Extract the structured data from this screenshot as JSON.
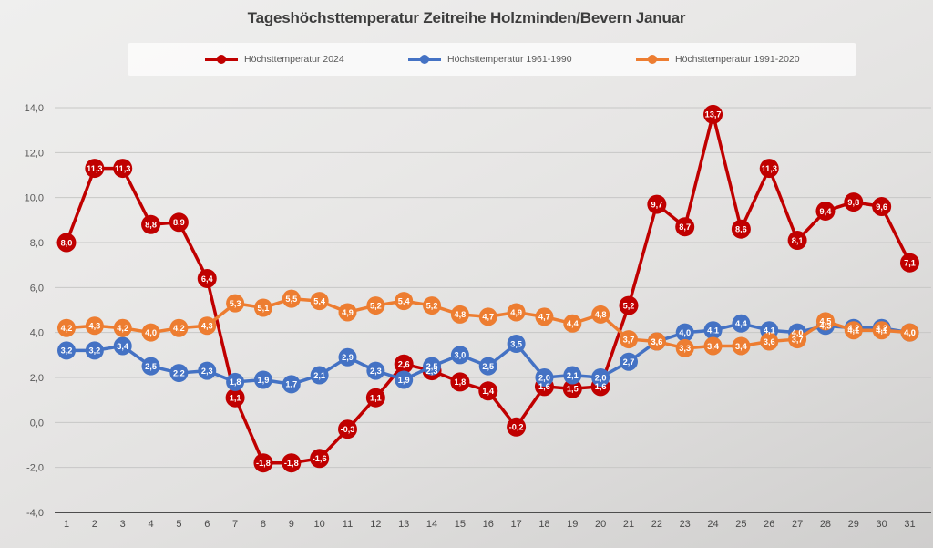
{
  "title": "Tageshöchsttemperatur Zeitreihe Holzminden/Bevern Januar",
  "legend": {
    "items": [
      {
        "label": "Höchsttemperatur 2024",
        "color": "#c00000"
      },
      {
        "label": "Höchsttemperatur 1961-1990",
        "color": "#4472c4"
      },
      {
        "label": "Höchsttemperatur 1991-2020",
        "color": "#ed7d31"
      }
    ]
  },
  "chart_data": {
    "type": "line",
    "title": "Tageshöchsttemperatur Zeitreihe Holzminden/Bevern Januar",
    "xlabel": "",
    "ylabel": "",
    "x": [
      1,
      2,
      3,
      4,
      5,
      6,
      7,
      8,
      9,
      10,
      11,
      12,
      13,
      14,
      15,
      16,
      17,
      18,
      19,
      20,
      21,
      22,
      23,
      24,
      25,
      26,
      27,
      28,
      29,
      30,
      31
    ],
    "xtick_labels": [
      "1",
      "2",
      "3",
      "4",
      "5",
      "6",
      "7",
      "8",
      "9",
      "10",
      "11",
      "12",
      "13",
      "14",
      "15",
      "16",
      "17",
      "18",
      "19",
      "20",
      "21",
      "22",
      "23",
      "24",
      "25",
      "26",
      "27",
      "28",
      "29",
      "30",
      "31"
    ],
    "ylim": [
      -4.0,
      14.0
    ],
    "ytick_step": 2.0,
    "ytick_labels": [
      "14,0",
      "12,0",
      "10,0",
      "8,0",
      "6,0",
      "4,0",
      "2,0",
      "0,0",
      "-2,0",
      "-4,0"
    ],
    "grid": true,
    "legend_position": "top",
    "decimal_separator": ",",
    "series": [
      {
        "name": "Höchsttemperatur 2024",
        "color": "#c00000",
        "values": [
          8.0,
          11.3,
          11.3,
          8.8,
          8.9,
          6.4,
          1.1,
          -1.8,
          -1.8,
          -1.6,
          -0.3,
          1.1,
          2.6,
          2.3,
          1.8,
          1.4,
          -0.2,
          1.6,
          1.5,
          1.6,
          5.2,
          9.7,
          8.7,
          13.7,
          8.6,
          11.3,
          8.1,
          9.4,
          9.8,
          9.6,
          7.1
        ]
      },
      {
        "name": "Höchsttemperatur 1961-1990",
        "color": "#4472c4",
        "values": [
          3.2,
          3.2,
          3.4,
          2.5,
          2.2,
          2.3,
          1.8,
          1.9,
          1.7,
          2.1,
          2.9,
          2.3,
          1.9,
          2.5,
          3.0,
          2.5,
          3.5,
          2.0,
          2.1,
          2.0,
          2.7,
          3.6,
          4.0,
          4.1,
          4.4,
          4.1,
          4.0,
          4.3,
          4.2,
          4.2,
          4.0
        ]
      },
      {
        "name": "Höchsttemperatur 1991-2020",
        "color": "#ed7d31",
        "values": [
          4.2,
          4.3,
          4.2,
          4.0,
          4.2,
          4.3,
          5.3,
          5.1,
          5.5,
          5.4,
          4.9,
          5.2,
          5.4,
          5.2,
          4.8,
          4.7,
          4.9,
          4.7,
          4.4,
          4.8,
          3.7,
          3.6,
          3.3,
          3.4,
          3.4,
          3.6,
          3.7,
          4.5,
          4.1,
          4.1,
          4.0
        ]
      }
    ]
  },
  "colors": {
    "gridline": "#c7c7c6",
    "axis_line": "#4d4d4d",
    "axis_text": "#595959",
    "title_text": "#3d3d3d",
    "legend_bg": "#fcfcfc",
    "point_label_text": "#ffffff"
  }
}
